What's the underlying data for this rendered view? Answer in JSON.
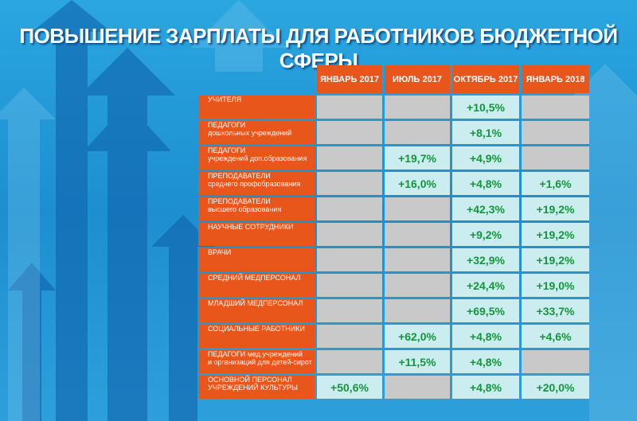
{
  "header": {
    "title": "ПОВЫШЕНИЕ ЗАРПЛАТЫ ДЛЯ РАБОТНИКОВ БЮДЖЕТНОЙ СФЕРЫ"
  },
  "table": {
    "columns": [
      "ЯНВАРЬ 2017",
      "ИЮЛЬ 2017",
      "ОКТЯБРЬ 2017",
      "ЯНВАРЬ 2018"
    ],
    "rows": [
      {
        "label": [
          "УЧИТЕЛЯ"
        ],
        "cells": [
          null,
          null,
          "+10,5%",
          null
        ]
      },
      {
        "label": [
          "ПЕДАГОГИ",
          "дошкольных учреждений"
        ],
        "cells": [
          null,
          null,
          "+8,1%",
          null
        ]
      },
      {
        "label": [
          "ПЕДАГОГИ",
          "учреждений доп.образования"
        ],
        "cells": [
          null,
          "+19,7%",
          "+4,9%",
          null
        ]
      },
      {
        "label": [
          "ПРЕПОДАВАТЕЛИ",
          "среднего профобразования"
        ],
        "cells": [
          null,
          "+16,0%",
          "+4,8%",
          "+1,6%"
        ]
      },
      {
        "label": [
          "ПРЕПОДАВАТЕЛИ",
          "высшего образования"
        ],
        "cells": [
          null,
          null,
          "+42,3%",
          "+19,2%"
        ]
      },
      {
        "label": [
          "НАУЧНЫЕ СОТРУДНИКИ"
        ],
        "cells": [
          null,
          null,
          "+9,2%",
          "+19,2%"
        ]
      },
      {
        "label": [
          "ВРАЧИ"
        ],
        "cells": [
          null,
          null,
          "+32,9%",
          "+19,2%"
        ]
      },
      {
        "label": [
          "СРЕДНИЙ МЕДПЕРСОНАЛ"
        ],
        "cells": [
          null,
          null,
          "+24,4%",
          "+19,0%"
        ]
      },
      {
        "label": [
          "МЛАДШИЙ МЕДПЕРСОНАЛ"
        ],
        "cells": [
          null,
          null,
          "+69,5%",
          "+33,7%"
        ]
      },
      {
        "label": [
          "СОЦИАЛЬНЫЕ РАБОТНИКИ"
        ],
        "cells": [
          null,
          "+62,0%",
          "+4,8%",
          "+4,6%"
        ]
      },
      {
        "label": [
          "ПЕДАГОГИ мед.учреждений",
          "и организаций для детей-сирот"
        ],
        "cells": [
          null,
          "+11,5%",
          "+4,8%",
          null
        ]
      },
      {
        "label": [
          "ОСНОВНОЙ ПЕРСОНАЛ",
          "УЧРЕЖДЕНИЙ КУЛЬТУРЫ"
        ],
        "cells": [
          "+50,6%",
          null,
          "+4,8%",
          "+20,0%"
        ]
      }
    ]
  }
}
